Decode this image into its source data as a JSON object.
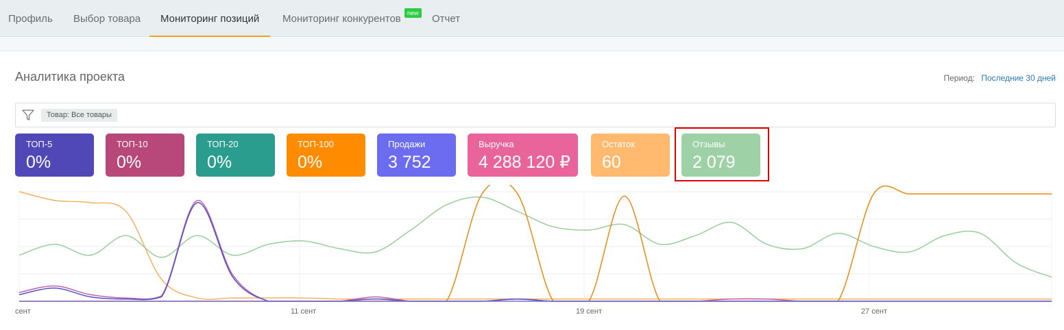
{
  "nav": {
    "tabs": [
      {
        "label": "Профиль"
      },
      {
        "label": "Выбор товара"
      },
      {
        "label": "Мониторинг позиций"
      },
      {
        "label": "Мониторинг конкурентов"
      },
      {
        "label": "Отчет"
      }
    ],
    "new_badge": "new",
    "active_tab": "Мониторинг позиций"
  },
  "header": {
    "title": "Аналитика проекта",
    "period_label": "Период:",
    "period_value": "Последние 30 дней"
  },
  "filter": {
    "chip": "Товар: Все товары",
    "icon": "filter-icon"
  },
  "cards": [
    {
      "label": "ТОП-5",
      "value": "0%",
      "color": "#5148b8"
    },
    {
      "label": "ТОП-10",
      "value": "0%",
      "color": "#b8487a"
    },
    {
      "label": "ТОП-20",
      "value": "0%",
      "color": "#2a9d8f"
    },
    {
      "label": "ТОП-100",
      "value": "0%",
      "color": "#ff8c00"
    },
    {
      "label": "Продажи",
      "value": "3 752",
      "color": "#6c6cf0"
    },
    {
      "label": "Выручка",
      "value": "4 288 120 ₽",
      "color": "#e8649a"
    },
    {
      "label": "Остаток",
      "value": "60",
      "color": "#ffba70"
    },
    {
      "label": "Отзывы",
      "value": "2 079",
      "color": "#9ed2a6"
    }
  ],
  "chart_data": {
    "type": "line",
    "x_tick_labels": [
      "сент",
      "11 сент",
      "19 сент",
      "27 сент"
    ],
    "ylim": [
      0,
      100
    ],
    "grid": true,
    "series": [
      {
        "color": "#f5b060",
        "values": [
          100,
          92,
          90,
          82,
          20,
          3,
          3,
          3,
          3,
          2,
          2,
          2,
          2,
          2,
          2,
          2,
          2,
          2,
          2,
          2,
          2,
          2,
          2,
          2,
          2,
          2,
          2,
          2,
          2,
          2
        ]
      },
      {
        "color": "#9acd9a",
        "values": [
          42,
          52,
          42,
          60,
          40,
          60,
          42,
          52,
          55,
          48,
          45,
          65,
          88,
          95,
          82,
          68,
          65,
          70,
          52,
          60,
          72,
          52,
          48,
          62,
          50,
          45,
          60,
          62,
          35,
          22
        ]
      },
      {
        "color": "#c060b0",
        "values": [
          8,
          14,
          6,
          3,
          5,
          92,
          24,
          0,
          0,
          0,
          4,
          0,
          0,
          0,
          2,
          0,
          0,
          0,
          0,
          0,
          2,
          2,
          0,
          0,
          0,
          0,
          0,
          0,
          0,
          0
        ]
      },
      {
        "color": "#e88a10",
        "values": [
          0,
          0,
          0,
          0,
          0,
          0,
          0,
          0,
          0,
          0,
          0,
          0,
          0,
          98,
          98,
          0,
          0,
          96,
          0,
          0,
          0,
          0,
          0,
          0,
          98,
          98,
          98,
          98,
          98,
          98
        ]
      },
      {
        "color": "#5050c0",
        "values": [
          6,
          12,
          4,
          2,
          4,
          90,
          22,
          0,
          0,
          0,
          2,
          0,
          0,
          0,
          2,
          0,
          0,
          0,
          0,
          0,
          0,
          0,
          0,
          0,
          0,
          0,
          0,
          0,
          0,
          0
        ]
      }
    ]
  }
}
